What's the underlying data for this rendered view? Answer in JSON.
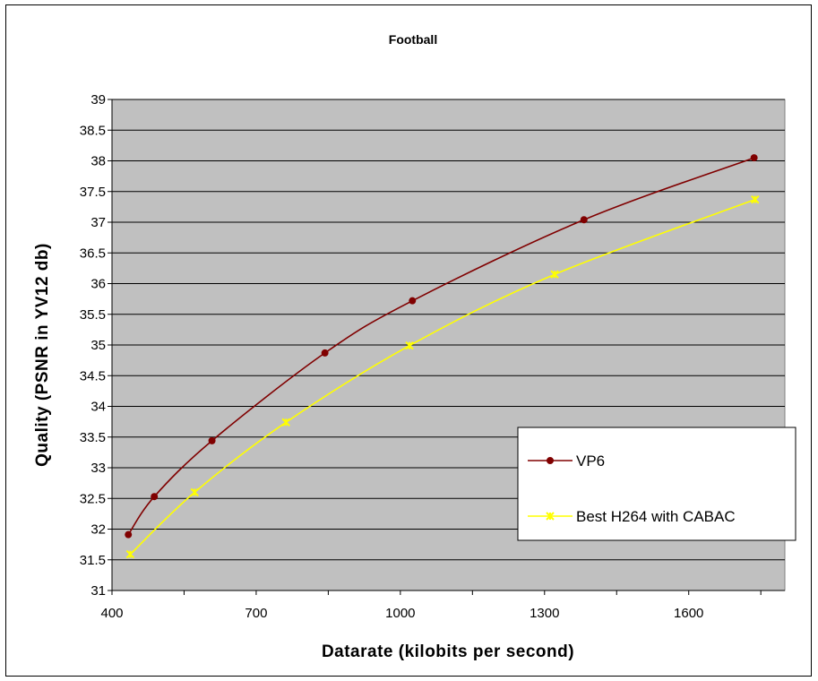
{
  "chart_data": {
    "type": "line",
    "title": "Football",
    "xlabel": "Datarate (kilobits per second)",
    "ylabel": "Quality (PSNR in YV12 db)",
    "xlim": [
      400,
      1600
    ],
    "xticks": [
      400,
      700,
      1000,
      1300,
      1600
    ],
    "xtick_labels": [
      "400",
      "700",
      "1000",
      "1300",
      "1600"
    ],
    "ylim": [
      31,
      39
    ],
    "yticks": [
      31,
      31.5,
      32,
      32.5,
      33,
      33.5,
      34,
      34.5,
      35,
      35.5,
      36,
      36.5,
      37,
      37.5,
      38,
      38.5,
      39
    ],
    "ytick_labels": [
      "31",
      "31.5",
      "32",
      "32.5",
      "33",
      "33.5",
      "34",
      "34.5",
      "35",
      "35.5",
      "36",
      "36.5",
      "37",
      "37.5",
      "38",
      "38.5",
      "39"
    ],
    "grid": "horizontal",
    "legend": "right",
    "plot_background": "#c0c0c0",
    "series": [
      {
        "name": "VP6",
        "color": "#800000",
        "marker": "circle",
        "x": [
          434,
          488,
          608,
          843,
          1025,
          1382,
          1736
        ],
        "y": [
          31.91,
          32.53,
          33.44,
          34.87,
          35.72,
          37.04,
          38.05
        ]
      },
      {
        "name": "Best H264 with CABAC",
        "color": "#ffff00",
        "marker": "star",
        "x": [
          438,
          572,
          762,
          1019,
          1321,
          1738
        ],
        "y": [
          31.59,
          32.6,
          33.74,
          34.99,
          36.15,
          37.37
        ]
      }
    ]
  }
}
